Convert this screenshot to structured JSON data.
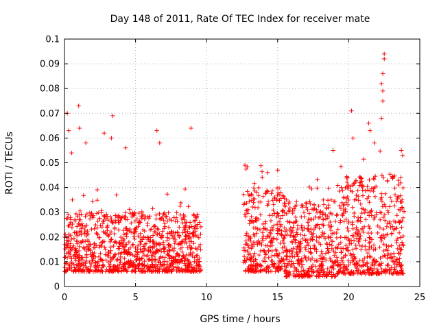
{
  "chart_data": {
    "type": "scatter",
    "title": "Day 148 of 2011, Rate Of TEC Index for receiver mate",
    "xlabel": "GPS time / hours",
    "ylabel": "ROTI / TECUs",
    "xlim": [
      0,
      25
    ],
    "ylim": [
      0,
      0.1
    ],
    "xticks": [
      "0",
      "5",
      "10",
      "15",
      "20",
      "25"
    ],
    "yticks": [
      "0",
      "0.01",
      "0.02",
      "0.03",
      "0.04",
      "0.05",
      "0.06",
      "0.07",
      "0.08",
      "0.09",
      "0.1"
    ],
    "grid": true,
    "marker": "+",
    "series": [
      {
        "color": "#ff0000",
        "segments": [
          {
            "x_start": 0.0,
            "x_end": 9.6,
            "base_min": 0.006,
            "base_max": 0.03
          },
          {
            "x_start": 12.6,
            "x_end": 15.5,
            "base_min": 0.006,
            "base_max": 0.04
          },
          {
            "x_start": 15.5,
            "x_end": 19.2,
            "base_min": 0.004,
            "base_max": 0.035
          },
          {
            "x_start": 19.2,
            "x_end": 23.9,
            "base_min": 0.005,
            "base_max": 0.045
          }
        ],
        "points": [
          {
            "x": 0.2,
            "y": 0.07
          },
          {
            "x": 0.3,
            "y": 0.063
          },
          {
            "x": 0.5,
            "y": 0.054
          },
          {
            "x": 1.0,
            "y": 0.073
          },
          {
            "x": 1.05,
            "y": 0.064
          },
          {
            "x": 1.5,
            "y": 0.058
          },
          {
            "x": 2.8,
            "y": 0.062
          },
          {
            "x": 3.3,
            "y": 0.06
          },
          {
            "x": 3.4,
            "y": 0.069
          },
          {
            "x": 4.3,
            "y": 0.056
          },
          {
            "x": 6.5,
            "y": 0.063
          },
          {
            "x": 6.7,
            "y": 0.058
          },
          {
            "x": 8.9,
            "y": 0.064
          },
          {
            "x": 12.7,
            "y": 0.049
          },
          {
            "x": 14.3,
            "y": 0.046
          },
          {
            "x": 15.0,
            "y": 0.047
          },
          {
            "x": 18.9,
            "y": 0.055
          },
          {
            "x": 20.2,
            "y": 0.071
          },
          {
            "x": 20.3,
            "y": 0.06
          },
          {
            "x": 21.4,
            "y": 0.066
          },
          {
            "x": 21.5,
            "y": 0.063
          },
          {
            "x": 21.8,
            "y": 0.058
          },
          {
            "x": 22.3,
            "y": 0.082
          },
          {
            "x": 22.4,
            "y": 0.086
          },
          {
            "x": 22.4,
            "y": 0.079
          },
          {
            "x": 22.5,
            "y": 0.094
          },
          {
            "x": 22.5,
            "y": 0.092
          },
          {
            "x": 22.4,
            "y": 0.075
          },
          {
            "x": 22.3,
            "y": 0.068
          },
          {
            "x": 23.7,
            "y": 0.055
          },
          {
            "x": 23.8,
            "y": 0.053
          }
        ]
      }
    ]
  }
}
